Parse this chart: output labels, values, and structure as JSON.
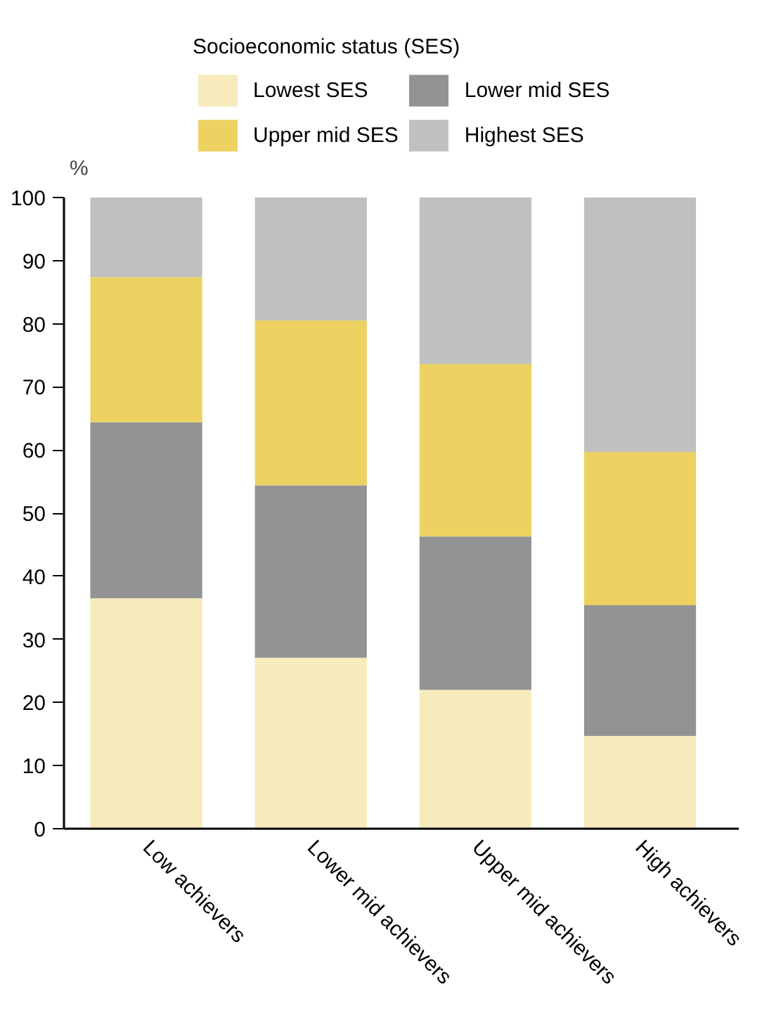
{
  "chart_data": {
    "type": "bar",
    "stacked": true,
    "ylabel": "%",
    "legend_title": "Socioeconomic status (SES)",
    "legend": "top",
    "categories": [
      "Low achievers",
      "Lower mid achievers",
      "Upper mid achievers",
      "High achievers"
    ],
    "series": [
      {
        "name": "Lowest SES",
        "color": "#f7eabb",
        "values": [
          36.5,
          27.1,
          22.0,
          14.7
        ]
      },
      {
        "name": "Lower mid SES",
        "color": "#939393",
        "values": [
          27.9,
          27.3,
          24.3,
          20.7
        ]
      },
      {
        "name": "Upper mid SES",
        "color": "#edd261",
        "values": [
          23.0,
          26.1,
          27.3,
          24.3
        ]
      },
      {
        "name": "Highest SES",
        "color": "#c0c0c0",
        "values": [
          12.6,
          19.5,
          26.4,
          40.3
        ]
      }
    ],
    "ylim": [
      0,
      100
    ],
    "yticks": [
      0,
      10,
      20,
      30,
      40,
      50,
      60,
      70,
      80,
      90,
      100
    ],
    "grid": false
  }
}
